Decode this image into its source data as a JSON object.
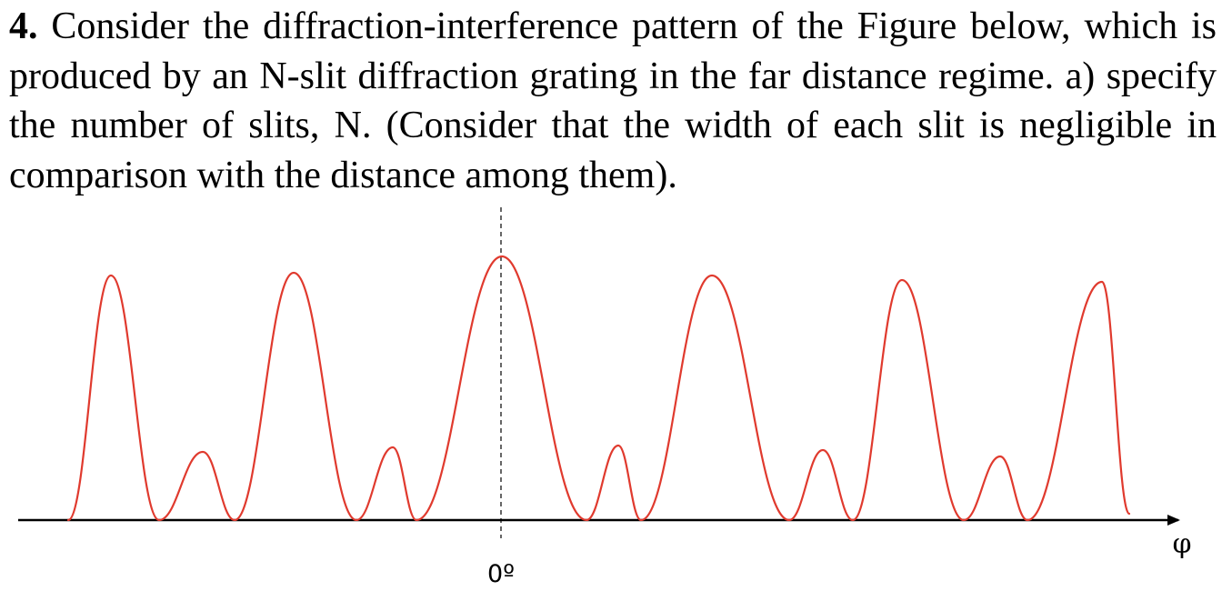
{
  "question": {
    "number": "4.",
    "text": " Consider the diffraction-interference pattern of the Figure below, which is produced by an N-slit diffraction grating in the far distance regime. a) specify the number of slits, N. (Consider that the width of each slit is negligible in comparison with the distance among them)."
  },
  "figure": {
    "origin_label": "0º",
    "axis_variable": "φ",
    "curve_color": "#e03a2e",
    "axis_color": "#000000",
    "center_line": "dashed"
  },
  "chart_data": {
    "type": "line",
    "title": "",
    "xlabel": "φ",
    "ylabel": "",
    "x_tick_labels": [
      "0º"
    ],
    "grid": false,
    "principal_maxima_count": 6,
    "secondary_maxima_between_principal": 1,
    "minima_between_principal": 2,
    "description_note": ""
  }
}
